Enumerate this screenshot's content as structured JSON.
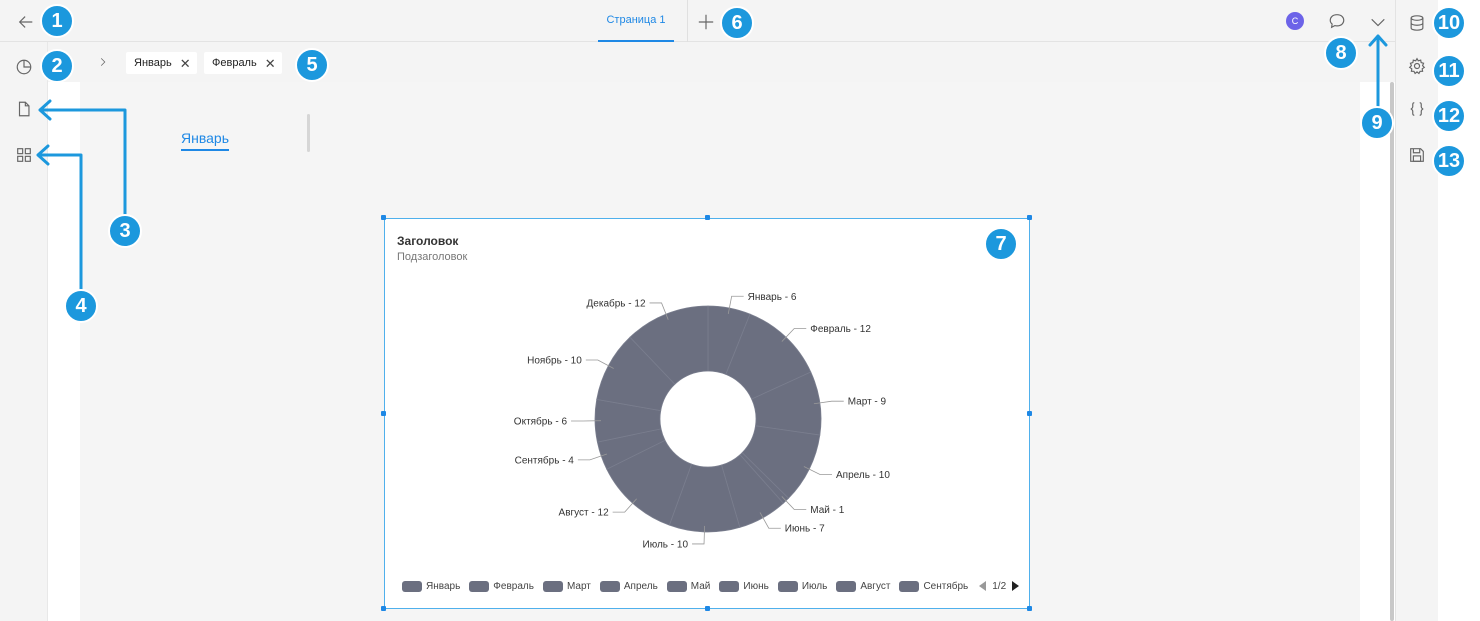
{
  "header": {
    "tab_label": "Страница 1",
    "avatar_letter": "C"
  },
  "filters": {
    "chips": [
      {
        "label": "Январь",
        "close": "✕"
      },
      {
        "label": "Февраль",
        "close": "✕"
      }
    ]
  },
  "pages": {
    "active_label": "Январь"
  },
  "widget": {
    "title": "Заголовок",
    "subtitle": "Подзаголовок"
  },
  "chart_data": {
    "type": "pie",
    "style": "donut",
    "title": "Заголовок",
    "subtitle": "Подзаголовок",
    "slice_color": "#6b6f80",
    "categories": [
      "Январь",
      "Февраль",
      "Март",
      "Апрель",
      "Май",
      "Июнь",
      "Июль",
      "Август",
      "Сентябрь",
      "Октябрь",
      "Ноябрь",
      "Декабрь"
    ],
    "values": [
      6,
      12,
      9,
      10,
      1,
      7,
      10,
      12,
      4,
      6,
      10,
      12
    ],
    "data_labels": [
      "Январь - 6",
      "Февраль - 12",
      "Март - 9",
      "Апрель - 10",
      "Май - 1",
      "Июнь - 7",
      "Июль - 10",
      "Август - 12",
      "Сентябрь - 4",
      "Октябрь - 6",
      "Ноябрь - 10",
      "Декабрь - 12"
    ],
    "legend": {
      "placement": "bottom",
      "visible_items": [
        "Январь",
        "Февраль",
        "Март",
        "Апрель",
        "Май",
        "Июнь",
        "Июль",
        "Август",
        "Сентябрь"
      ],
      "page": "1/2"
    }
  },
  "badges": [
    "1",
    "2",
    "3",
    "4",
    "5",
    "6",
    "7",
    "8",
    "9",
    "10",
    "11",
    "12",
    "13"
  ],
  "colors": {
    "accent": "#1e88e5",
    "badge": "#1c98dd",
    "avatar": "#6c63e8"
  },
  "icons": {
    "back": "arrow-left-icon",
    "chart": "pie-chart-icon",
    "page": "document-icon",
    "widgets": "grid-icon",
    "breadcrumb": "chevron-right-icon",
    "add": "plus-icon",
    "comment": "comment-icon",
    "collapse": "chevron-down-icon",
    "database": "database-icon",
    "settings": "gear-icon",
    "code": "code-braces-icon",
    "save": "floppy-disk-icon"
  }
}
